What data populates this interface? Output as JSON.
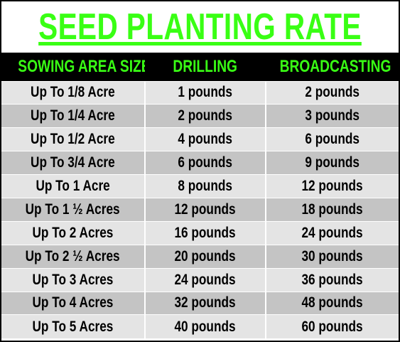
{
  "title": "SEED PLANTING RATE",
  "colors": {
    "accent_green": "#39ff14",
    "header_bg": "#000000",
    "row_light": "#e4e4e4",
    "row_dark": "#c4c4c4"
  },
  "table": {
    "headers": [
      "SOWING AREA SIZE",
      "DRILLING",
      "BROADCASTING"
    ],
    "rows": [
      [
        "Up To 1/8 Acre",
        "1 pounds",
        "2 pounds"
      ],
      [
        "Up To 1/4 Acre",
        "2 pounds",
        "3 pounds"
      ],
      [
        "Up To 1/2 Acre",
        "4 pounds",
        "6 pounds"
      ],
      [
        "Up To 3/4 Acre",
        "6 pounds",
        "9 pounds"
      ],
      [
        "Up To 1 Acre",
        "8 pounds",
        "12 pounds"
      ],
      [
        "Up To 1 ½ Acres",
        "12 pounds",
        "18 pounds"
      ],
      [
        "Up To 2 Acres",
        "16 pounds",
        "24 pounds"
      ],
      [
        "Up To 2 ½ Acres",
        "20 pounds",
        "30 pounds"
      ],
      [
        "Up To 3 Acres",
        "24 pounds",
        "36 pounds"
      ],
      [
        "Up To 4 Acres",
        "32 pounds",
        "48 pounds"
      ],
      [
        "Up To 5 Acres",
        "40 pounds",
        "60 pounds"
      ]
    ]
  }
}
